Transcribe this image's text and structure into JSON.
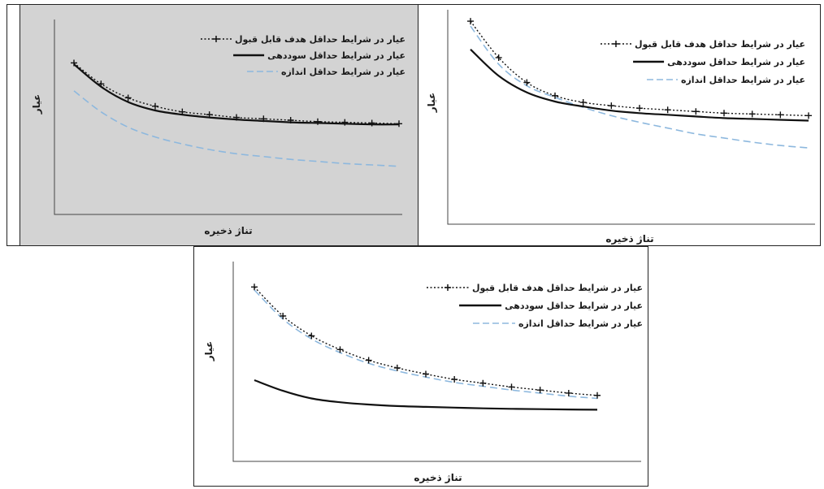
{
  "colors": {
    "acceptable": "#111111",
    "profit": "#111111",
    "size": "#8db8de",
    "panel_gray": "#d3d3d3",
    "panel_white": "#ffffff"
  },
  "chart_data": [
    {
      "type": "line",
      "background": "gray",
      "xlabel": "تناژ ذخیره",
      "ylabel": "عیار",
      "xlim": [
        0,
        12
      ],
      "ylim": [
        0,
        10
      ],
      "grid": false,
      "legend_position": "top-right",
      "series": [
        {
          "name": "عیار در شرایط حداقل هدف قابل قبول",
          "style": "dotted-plus",
          "x": [
            0,
            1,
            2,
            3,
            4,
            5,
            6,
            7,
            8,
            9,
            10,
            11,
            12
          ],
          "y": [
            9.1,
            7.6,
            6.6,
            6.0,
            5.6,
            5.4,
            5.2,
            5.1,
            5.0,
            4.9,
            4.85,
            4.8,
            4.75
          ]
        },
        {
          "name": "عیار در شرایط حداقل سوددهی",
          "style": "solid",
          "x": [
            0,
            1,
            2,
            3,
            4,
            5,
            6,
            7,
            8,
            9,
            10,
            11,
            12
          ],
          "y": [
            9.0,
            7.4,
            6.3,
            5.7,
            5.4,
            5.2,
            5.05,
            4.95,
            4.85,
            4.8,
            4.75,
            4.7,
            4.7
          ]
        },
        {
          "name": "عیار در شرایط حداقل اندازه",
          "style": "dashed",
          "x": [
            0,
            1,
            2,
            3,
            4,
            5,
            6,
            7,
            8,
            9,
            10,
            11,
            12
          ],
          "y": [
            7.1,
            5.6,
            4.5,
            3.8,
            3.3,
            2.9,
            2.6,
            2.4,
            2.2,
            2.05,
            1.9,
            1.8,
            1.7
          ]
        }
      ]
    },
    {
      "type": "line",
      "background": "white",
      "xlabel": "تناژ ذخیره",
      "ylabel": "عیار",
      "xlim": [
        0,
        12
      ],
      "ylim": [
        0,
        10
      ],
      "grid": false,
      "legend_position": "top-right",
      "series": [
        {
          "name": "عیار در شرایط حداقل هدف قابل قبول",
          "style": "dotted-plus",
          "x": [
            0,
            1,
            2,
            3,
            4,
            5,
            6,
            7,
            8,
            9,
            10,
            11,
            12
          ],
          "y": [
            9.8,
            7.6,
            6.1,
            5.3,
            4.9,
            4.7,
            4.55,
            4.45,
            4.35,
            4.25,
            4.2,
            4.15,
            4.1
          ]
        },
        {
          "name": "عیار در شرایط حداقل سوددهی",
          "style": "solid",
          "x": [
            0,
            1,
            2,
            3,
            4,
            5,
            6,
            7,
            8,
            9,
            10,
            11,
            12
          ],
          "y": [
            8.1,
            6.5,
            5.5,
            4.95,
            4.65,
            4.4,
            4.25,
            4.15,
            4.05,
            3.95,
            3.9,
            3.85,
            3.8
          ]
        },
        {
          "name": "عیار در شرایط حداقل اندازه",
          "style": "dashed",
          "x": [
            0,
            1,
            2,
            3,
            4,
            5,
            6,
            7,
            8,
            9,
            10,
            11,
            12
          ],
          "y": [
            9.5,
            7.2,
            5.9,
            5.2,
            4.6,
            4.1,
            3.7,
            3.35,
            3.0,
            2.75,
            2.5,
            2.3,
            2.15
          ]
        }
      ]
    },
    {
      "type": "line",
      "background": "white",
      "xlabel": "تناژ ذخیره",
      "ylabel": "عیار",
      "xlim": [
        0,
        12
      ],
      "ylim": [
        0,
        10
      ],
      "grid": false,
      "legend_position": "top-right",
      "series": [
        {
          "name": "عیار در شرایط حداقل هدف قابل قبول",
          "style": "dotted-plus",
          "x": [
            0,
            1,
            2,
            3,
            4,
            5,
            6,
            7,
            8,
            9,
            10,
            11,
            12
          ],
          "y": [
            9.4,
            7.5,
            6.2,
            5.3,
            4.6,
            4.1,
            3.7,
            3.35,
            3.1,
            2.85,
            2.65,
            2.45,
            2.3
          ]
        },
        {
          "name": "عیار در شرایط حداقل سوددهی",
          "style": "solid",
          "x": [
            0,
            1,
            2,
            3,
            4,
            5,
            6,
            7,
            8,
            9,
            10,
            11,
            12
          ],
          "y": [
            3.3,
            2.6,
            2.1,
            1.85,
            1.7,
            1.6,
            1.55,
            1.5,
            1.45,
            1.42,
            1.4,
            1.38,
            1.36
          ]
        },
        {
          "name": "عیار در شرایط حداقل اندازه",
          "style": "dashed",
          "x": [
            0,
            1,
            2,
            3,
            4,
            5,
            6,
            7,
            8,
            9,
            10,
            11,
            12
          ],
          "y": [
            9.2,
            7.3,
            6.0,
            5.1,
            4.4,
            3.9,
            3.5,
            3.15,
            2.9,
            2.65,
            2.45,
            2.25,
            2.1
          ]
        }
      ]
    }
  ]
}
